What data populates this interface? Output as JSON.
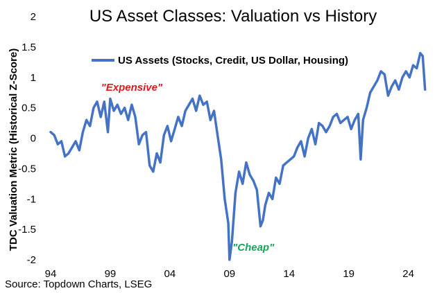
{
  "chart_data": {
    "type": "line",
    "title": "US Asset Classes: Valuation vs History",
    "xlabel": "",
    "ylabel": "TDC Valuation Metric (Historical Z-Score)",
    "xlim": [
      1994,
      2026
    ],
    "ylim": [
      -2,
      2
    ],
    "x_ticks": [
      94,
      99,
      4,
      9,
      14,
      19,
      24
    ],
    "x_tick_labels": [
      "94",
      "99",
      "04",
      "09",
      "14",
      "19",
      "24"
    ],
    "y_ticks": [
      2,
      1.5,
      1,
      0.5,
      0,
      -0.5,
      -1,
      -1.5,
      -2
    ],
    "y_tick_labels": [
      "2",
      "1.5",
      "1",
      "0.5",
      "0",
      "-0.5",
      "-1",
      "-1.5",
      "-2"
    ],
    "legend": {
      "label": "US Assets (Stocks, Credit, US Dollar, Housing)",
      "placement": "top-left"
    },
    "annotations": [
      {
        "text": "\"Expensive\"",
        "color": "#e0161c",
        "x": 2000.8,
        "y": 0.78
      },
      {
        "text": "\"Cheap\"",
        "color": "#17a35a",
        "x": 2011.0,
        "y": -1.85
      }
    ],
    "source": "Source: Topdown Charts, LSEG",
    "series": [
      {
        "name": "US Assets (Stocks, Credit, US Dollar, Housing)",
        "color": "#4472c4",
        "x": [
          1994.0,
          1994.3,
          1994.6,
          1994.9,
          1995.2,
          1995.5,
          1995.8,
          1996.1,
          1996.4,
          1996.7,
          1997.0,
          1997.3,
          1997.6,
          1997.9,
          1998.2,
          1998.5,
          1998.8,
          1999.0,
          1999.3,
          1999.6,
          1999.9,
          2000.2,
          2000.5,
          2000.8,
          2001.1,
          2001.4,
          2001.7,
          2002.0,
          2002.3,
          2002.6,
          2002.9,
          2003.2,
          2003.5,
          2003.8,
          2004.1,
          2004.4,
          2004.7,
          2005.0,
          2005.3,
          2005.6,
          2005.9,
          2006.2,
          2006.5,
          2006.8,
          2007.1,
          2007.4,
          2007.7,
          2008.0,
          2008.3,
          2008.6,
          2008.9,
          2009.0,
          2009.2,
          2009.5,
          2009.8,
          2010.1,
          2010.4,
          2010.7,
          2011.0,
          2011.3,
          2011.6,
          2011.8,
          2012.0,
          2012.3,
          2012.6,
          2012.9,
          2013.2,
          2013.5,
          2013.8,
          2014.1,
          2014.4,
          2014.7,
          2015.0,
          2015.3,
          2015.6,
          2015.9,
          2016.2,
          2016.5,
          2016.8,
          2017.1,
          2017.4,
          2017.7,
          2018.0,
          2018.3,
          2018.6,
          2018.9,
          2019.2,
          2019.5,
          2019.8,
          2020.0,
          2020.2,
          2020.5,
          2020.8,
          2021.1,
          2021.4,
          2021.7,
          2022.0,
          2022.3,
          2022.6,
          2022.9,
          2023.2,
          2023.5,
          2023.8,
          2024.1,
          2024.4,
          2024.7,
          2025.0,
          2025.2,
          2025.4
        ],
        "values": [
          0.1,
          0.05,
          -0.1,
          -0.05,
          -0.3,
          -0.25,
          -0.15,
          -0.05,
          -0.2,
          0.1,
          0.3,
          0.2,
          0.5,
          0.6,
          0.35,
          0.6,
          0.1,
          0.65,
          0.45,
          0.55,
          0.4,
          0.5,
          0.3,
          0.55,
          0.35,
          -0.1,
          0.05,
          0.1,
          -0.45,
          -0.55,
          -0.25,
          -0.4,
          0.05,
          0.2,
          -0.05,
          0.15,
          0.35,
          0.2,
          0.45,
          0.55,
          0.65,
          0.45,
          0.7,
          0.55,
          0.6,
          0.3,
          0.45,
          0.05,
          -0.35,
          -1.0,
          -1.4,
          -2.0,
          -1.7,
          -0.9,
          -0.55,
          -0.75,
          -0.4,
          -0.6,
          -0.7,
          -0.85,
          -1.45,
          -1.35,
          -1.1,
          -0.9,
          -1.0,
          -0.65,
          -0.75,
          -0.45,
          -0.4,
          -0.35,
          -0.3,
          -0.15,
          -0.05,
          -0.3,
          0.0,
          0.15,
          -0.1,
          0.25,
          0.2,
          0.1,
          0.2,
          0.35,
          0.4,
          0.25,
          0.3,
          0.35,
          0.15,
          0.3,
          0.4,
          -0.35,
          0.3,
          0.5,
          0.75,
          0.85,
          0.95,
          1.1,
          1.05,
          0.7,
          0.85,
          0.95,
          0.8,
          1.0,
          1.1,
          1.0,
          1.2,
          1.15,
          1.4,
          1.35,
          0.8
        ]
      }
    ]
  }
}
